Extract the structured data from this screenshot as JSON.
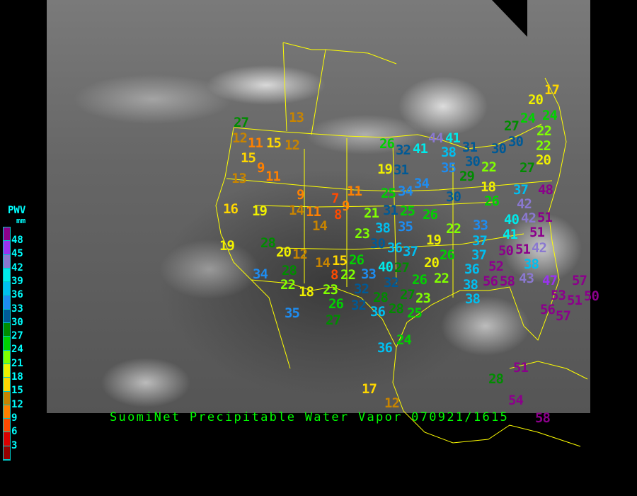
{
  "title": "SuomiNet Precipitable Water Vapor 070921/1615",
  "legend": {
    "title": "PWV",
    "unit": "mm",
    "ticks": [
      "48",
      "45",
      "42",
      "39",
      "36",
      "33",
      "30",
      "27",
      "24",
      "21",
      "18",
      "15",
      "12",
      "9",
      "6",
      "3"
    ],
    "colors": [
      "#8b008b",
      "#9a32f0",
      "#8a78d0",
      "#00eaea",
      "#00bff0",
      "#1e8cf0",
      "#005a96",
      "#008c00",
      "#00d200",
      "#80ff00",
      "#f0f000",
      "#ffd700",
      "#c88400",
      "#ff8000",
      "#ff4a00",
      "#dc0000",
      "#960000"
    ]
  },
  "stations": [
    "27",
    "12",
    "11",
    "15",
    "12",
    "13",
    "15",
    "9",
    "11",
    "13",
    "9",
    "14",
    "11",
    "7",
    "11",
    "9",
    "8",
    "14",
    "16",
    "19",
    "19",
    "28",
    "20",
    "12",
    "14",
    "15",
    "8",
    "26",
    "34",
    "28",
    "22",
    "18",
    "22",
    "23",
    "26",
    "35",
    "27",
    "36",
    "36",
    "17",
    "12",
    "25",
    "24",
    "23",
    "27",
    "26",
    "22",
    "20",
    "19",
    "22",
    "26",
    "25",
    "21",
    "31",
    "35",
    "38",
    "23",
    "30",
    "36",
    "37",
    "27",
    "26",
    "40",
    "33",
    "32",
    "32",
    "28",
    "28",
    "32",
    "26",
    "32",
    "41",
    "44",
    "41",
    "38",
    "35",
    "31",
    "30",
    "30",
    "30",
    "27",
    "19",
    "31",
    "34",
    "34",
    "25",
    "30",
    "29",
    "22",
    "18",
    "26",
    "27",
    "20",
    "22",
    "24",
    "22",
    "17",
    "20",
    "24",
    "37",
    "42",
    "48",
    "42",
    "51",
    "40",
    "41",
    "51",
    "51",
    "50",
    "42",
    "33",
    "37",
    "37",
    "36",
    "38",
    "38",
    "52",
    "56",
    "58",
    "38",
    "43",
    "47",
    "57",
    "53",
    "56",
    "51",
    "57",
    "50",
    "51",
    "28",
    "54",
    "58"
  ]
}
